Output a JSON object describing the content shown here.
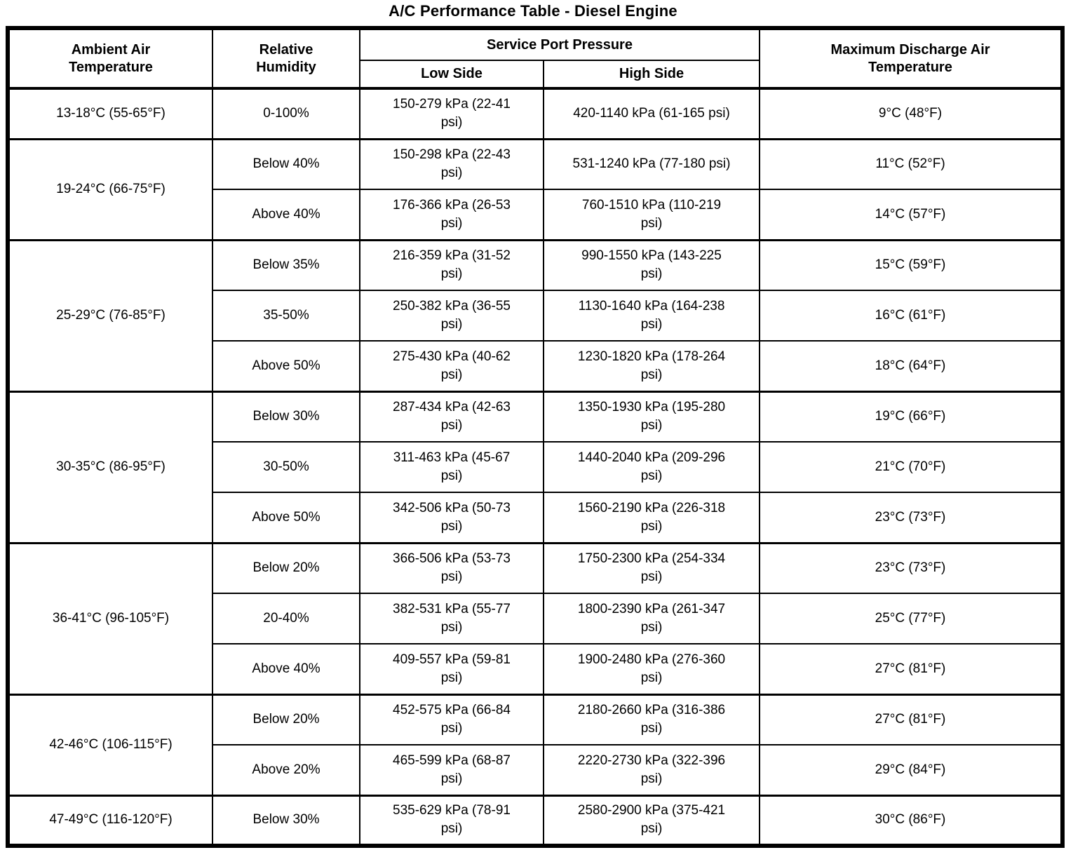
{
  "title": "A/C Performance Table - Diesel Engine",
  "table": {
    "headers": {
      "ambient": "Ambient Air\nTemperature",
      "humidity": "Relative\nHumidity",
      "service": "Service Port Pressure",
      "low": "Low Side",
      "high": "High Side",
      "max": "Maximum Discharge Air\nTemperature"
    },
    "groups": [
      {
        "ambient": "13-18°C (55-65°F)",
        "rows": [
          {
            "humidity": "0-100%",
            "low": "150-279 kPa (22-41\npsi)",
            "high": "420-1140 kPa (61-165 psi)",
            "max": "9°C (48°F)"
          }
        ]
      },
      {
        "ambient": "19-24°C (66-75°F)",
        "rows": [
          {
            "humidity": "Below 40%",
            "low": "150-298 kPa (22-43\npsi)",
            "high": "531-1240 kPa (77-180 psi)",
            "max": "11°C (52°F)"
          },
          {
            "humidity": "Above 40%",
            "low": "176-366 kPa (26-53\npsi)",
            "high": "760-1510 kPa (110-219\npsi)",
            "max": "14°C (57°F)"
          }
        ]
      },
      {
        "ambient": "25-29°C (76-85°F)",
        "rows": [
          {
            "humidity": "Below 35%",
            "low": "216-359 kPa (31-52\npsi)",
            "high": "990-1550 kPa (143-225\npsi)",
            "max": "15°C (59°F)"
          },
          {
            "humidity": "35-50%",
            "low": "250-382 kPa (36-55\npsi)",
            "high": "1130-1640 kPa (164-238\npsi)",
            "max": "16°C (61°F)"
          },
          {
            "humidity": "Above 50%",
            "low": "275-430 kPa (40-62\npsi)",
            "high": "1230-1820 kPa (178-264\npsi)",
            "max": "18°C (64°F)"
          }
        ]
      },
      {
        "ambient": "30-35°C (86-95°F)",
        "rows": [
          {
            "humidity": "Below 30%",
            "low": "287-434 kPa (42-63\npsi)",
            "high": "1350-1930 kPa (195-280\npsi)",
            "max": "19°C (66°F)"
          },
          {
            "humidity": "30-50%",
            "low": "311-463 kPa (45-67\npsi)",
            "high": "1440-2040 kPa (209-296\npsi)",
            "max": "21°C (70°F)"
          },
          {
            "humidity": "Above 50%",
            "low": "342-506 kPa (50-73\npsi)",
            "high": "1560-2190 kPa (226-318\npsi)",
            "max": "23°C (73°F)"
          }
        ]
      },
      {
        "ambient": "36-41°C (96-105°F)",
        "rows": [
          {
            "humidity": "Below 20%",
            "low": "366-506 kPa (53-73\npsi)",
            "high": "1750-2300 kPa (254-334\npsi)",
            "max": "23°C (73°F)"
          },
          {
            "humidity": "20-40%",
            "low": "382-531 kPa (55-77\npsi)",
            "high": "1800-2390 kPa (261-347\npsi)",
            "max": "25°C (77°F)"
          },
          {
            "humidity": "Above 40%",
            "low": "409-557 kPa (59-81\npsi)",
            "high": "1900-2480 kPa (276-360\npsi)",
            "max": "27°C (81°F)"
          }
        ]
      },
      {
        "ambient": "42-46°C (106-115°F)",
        "rows": [
          {
            "humidity": "Below 20%",
            "low": "452-575 kPa (66-84\npsi)",
            "high": "2180-2660 kPa (316-386\npsi)",
            "max": "27°C (81°F)"
          },
          {
            "humidity": "Above 20%",
            "low": "465-599 kPa (68-87\npsi)",
            "high": "2220-2730 kPa (322-396\npsi)",
            "max": "29°C (84°F)"
          }
        ]
      },
      {
        "ambient": "47-49°C (116-120°F)",
        "rows": [
          {
            "humidity": "Below 30%",
            "low": "535-629 kPa (78-91\npsi)",
            "high": "2580-2900 kPa (375-421\npsi)",
            "max": "30°C (86°F)"
          }
        ]
      }
    ]
  }
}
